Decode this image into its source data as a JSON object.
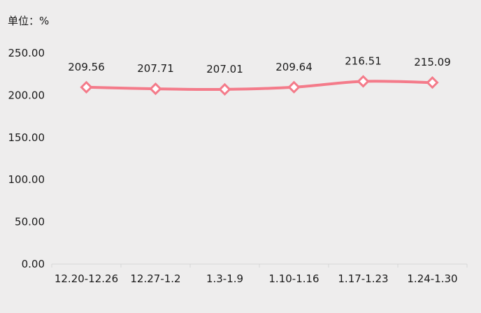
{
  "chart_data": {
    "type": "line",
    "unit_label": "单位：%",
    "categories": [
      "12.20-12.26",
      "12.27-1.2",
      "1.3-1.9",
      "1.10-1.16",
      "1.17-1.23",
      "1.24-1.30"
    ],
    "values": [
      209.56,
      207.71,
      207.01,
      209.64,
      216.51,
      215.09
    ],
    "data_labels": [
      "209.56",
      "207.71",
      "207.01",
      "209.64",
      "216.51",
      "215.09"
    ],
    "ylim": [
      0,
      250
    ],
    "y_ticks": [
      "0.00",
      "50.00",
      "100.00",
      "150.00",
      "200.00",
      "250.00"
    ],
    "y_tick_values": [
      0,
      50,
      100,
      150,
      200,
      250
    ],
    "grid": false,
    "legend": "none",
    "marker": "diamond",
    "colors": {
      "line": "#f47b8a",
      "marker_fill": "#ffffff",
      "axis": "#d6d6d6",
      "text": "#1a1a1a",
      "background": "#eeeded"
    }
  }
}
